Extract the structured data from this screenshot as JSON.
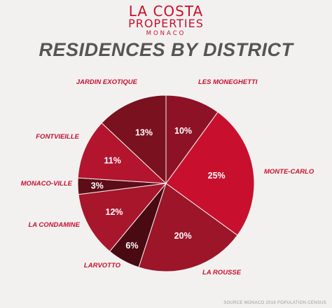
{
  "brand": {
    "line1": "LA COSTA",
    "line2": "PROPERTIES",
    "line3": "MONACO"
  },
  "chart_data": {
    "type": "pie",
    "title": "RESIDENCES BY DISTRICT",
    "slices": [
      {
        "label": "LES MONEGHETTI",
        "value": 10,
        "text": "10%",
        "color": "#8e1225"
      },
      {
        "label": "MONTE-CARLO",
        "value": 25,
        "text": "25%",
        "color": "#c8102e"
      },
      {
        "label": "LA ROUSSE",
        "value": 20,
        "text": "20%",
        "color": "#9c1529"
      },
      {
        "label": "LARVOTTO",
        "value": 6,
        "text": "6%",
        "color": "#4a0a12"
      },
      {
        "label": "LA CONDAMINE",
        "value": 12,
        "text": "12%",
        "color": "#a8162c"
      },
      {
        "label": "MONACO-VILLE",
        "value": 3,
        "text": "3%",
        "color": "#5c0d18"
      },
      {
        "label": "FONTVIEILLE",
        "value": 11,
        "text": "11%",
        "color": "#b3142e"
      },
      {
        "label": "JARDIN EXOTIQUE",
        "value": 13,
        "text": "13%",
        "color": "#7a111f"
      }
    ],
    "label_color": "#c8102e",
    "value_label_color": "#ffffff",
    "start_angle_deg": 0,
    "direction": "clockwise"
  },
  "source_note": "SOURCE MONACO 2016 POPULATION CENSUS"
}
